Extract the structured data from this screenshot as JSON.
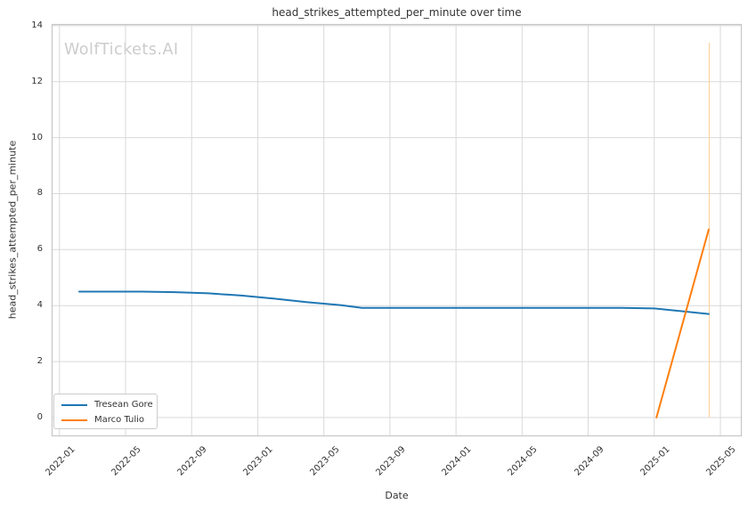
{
  "watermark": "WolfTickets.AI",
  "chart_data": {
    "type": "line",
    "title": "head_strikes_attempted_per_minute over time",
    "xlabel": "Date",
    "ylabel": "head_strikes_attempted_per_minute",
    "grid": true,
    "background": "#ffffff",
    "grid_color": "#d9d9d9",
    "spine_color": "#c6c6c6",
    "text_color": "#333333",
    "watermark_color": "#cccccc",
    "ylim": [
      -0.67,
      14.06
    ],
    "xlim_dates": [
      "2021-12-17",
      "2025-06-10"
    ],
    "y_ticks": [
      0,
      2,
      4,
      6,
      8,
      10,
      12,
      14
    ],
    "x_tick_labels": [
      "2022-01",
      "2022-05",
      "2022-09",
      "2023-01",
      "2023-05",
      "2023-09",
      "2024-01",
      "2024-05",
      "2024-09",
      "2025-01",
      "2025-05"
    ],
    "x_tick_dates": [
      "2022-01-01",
      "2022-05-01",
      "2022-09-01",
      "2023-01-01",
      "2023-05-01",
      "2023-09-01",
      "2024-01-01",
      "2024-05-01",
      "2024-09-01",
      "2025-01-01",
      "2025-05-01"
    ],
    "legend": {
      "position": "lower left",
      "entries": [
        {
          "label": "Tresean Gore",
          "color": "#1f77b4"
        },
        {
          "label": "Marco Tulio",
          "color": "#ff7f0e"
        }
      ]
    },
    "series": [
      {
        "name": "Tresean Gore",
        "color": "#1f77b4",
        "points": [
          {
            "date": "2022-02-07",
            "value": 4.5
          },
          {
            "date": "2022-04-01",
            "value": 4.5
          },
          {
            "date": "2022-06-01",
            "value": 4.5
          },
          {
            "date": "2022-08-01",
            "value": 4.48
          },
          {
            "date": "2022-10-01",
            "value": 4.44
          },
          {
            "date": "2022-12-01",
            "value": 4.36
          },
          {
            "date": "2023-02-01",
            "value": 4.25
          },
          {
            "date": "2023-04-01",
            "value": 4.12
          },
          {
            "date": "2023-06-01",
            "value": 4.02
          },
          {
            "date": "2023-07-10",
            "value": 3.92
          },
          {
            "date": "2023-11-01",
            "value": 3.92
          },
          {
            "date": "2024-03-01",
            "value": 3.92
          },
          {
            "date": "2024-07-01",
            "value": 3.92
          },
          {
            "date": "2024-11-01",
            "value": 3.92
          },
          {
            "date": "2025-01-01",
            "value": 3.9
          },
          {
            "date": "2025-04-10",
            "value": 3.7
          }
        ]
      },
      {
        "name": "Marco Tulio",
        "color": "#ff7f0e",
        "points": [
          {
            "date": "2025-01-05",
            "value": 0.0
          },
          {
            "date": "2025-04-10",
            "value": 6.72
          }
        ]
      }
    ],
    "annotations": [
      {
        "type": "vline",
        "date": "2025-04-11",
        "from": 0.0,
        "to": 13.4,
        "color": "#fbd3a6"
      }
    ]
  }
}
